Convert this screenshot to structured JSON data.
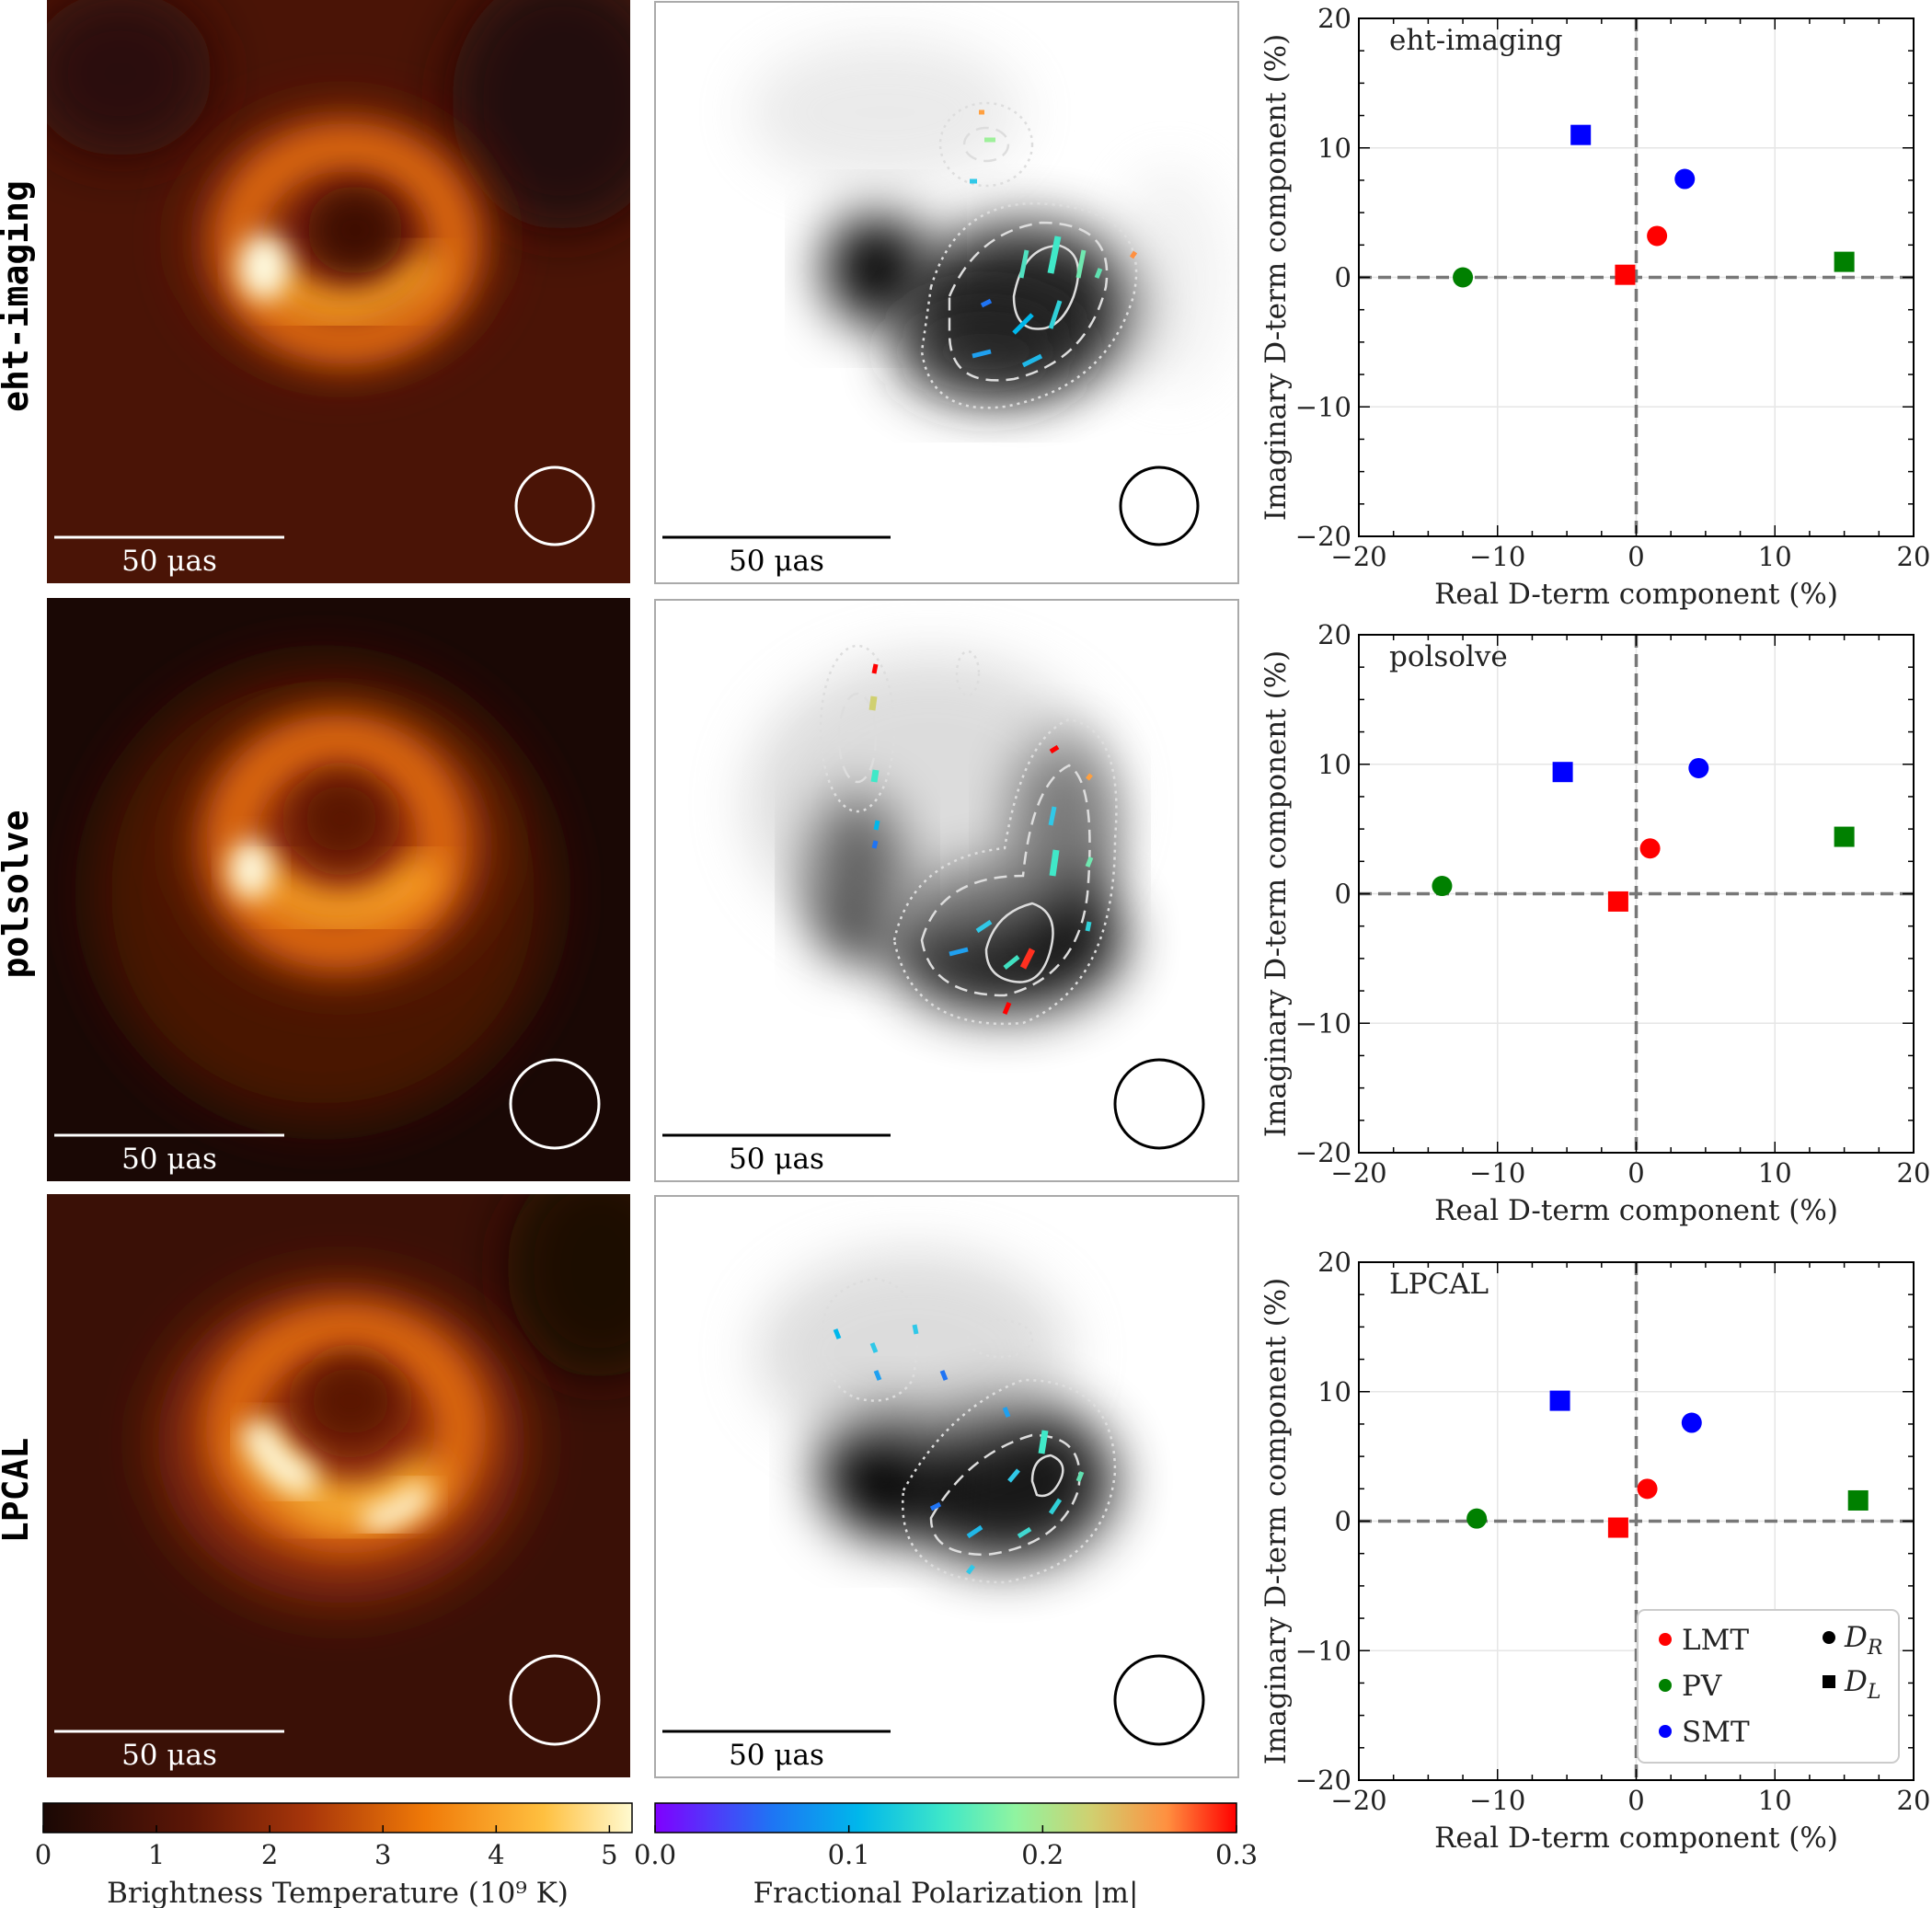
{
  "rows": [
    {
      "label": "eht-imaging",
      "panel_label": "eht-imaging"
    },
    {
      "label": "polsolve",
      "panel_label": "polsolve"
    },
    {
      "label": "LPCAL",
      "panel_label": "LPCAL"
    }
  ],
  "scale_bar": {
    "label": "50 μas"
  },
  "colorbars": {
    "brightness": {
      "label": "Brightness Temperature (10⁹ K)",
      "ticks": [
        "0",
        "1",
        "2",
        "3",
        "4",
        "5"
      ],
      "range": [
        0,
        5.2
      ]
    },
    "fracpol": {
      "label": "Fractional Polarization |m|",
      "ticks": [
        "0.0",
        "0.1",
        "0.2",
        "0.3"
      ],
      "range": [
        0,
        0.3
      ]
    }
  },
  "colors": {
    "LMT": "#ff0000",
    "PV": "#008000",
    "SMT": "#0000ff"
  },
  "legend": {
    "stations": [
      "LMT",
      "PV",
      "SMT"
    ],
    "markers": [
      {
        "label": "D",
        "sub": "R",
        "shape": "circle"
      },
      {
        "label": "D",
        "sub": "L",
        "shape": "square"
      }
    ]
  },
  "chart_data": [
    {
      "type": "scatter",
      "title": "eht-imaging",
      "xlabel": "Real D-term component (%)",
      "ylabel": "Imaginary D-term component (%)",
      "xlim": [
        -20,
        20
      ],
      "ylim": [
        -20,
        20
      ],
      "grid": true,
      "xticks": [
        "−20",
        "−10",
        "0",
        "10",
        "20"
      ],
      "yticks": [
        "−20",
        "−10",
        "0",
        "10",
        "20"
      ],
      "points": [
        {
          "station": "LMT",
          "term": "DR",
          "x": 1.5,
          "y": 3.2
        },
        {
          "station": "LMT",
          "term": "DL",
          "x": -0.8,
          "y": 0.2
        },
        {
          "station": "PV",
          "term": "DR",
          "x": -12.5,
          "y": 0.0
        },
        {
          "station": "PV",
          "term": "DL",
          "x": 15.0,
          "y": 1.2
        },
        {
          "station": "SMT",
          "term": "DR",
          "x": 3.5,
          "y": 7.6
        },
        {
          "station": "SMT",
          "term": "DL",
          "x": -4.0,
          "y": 11.0
        }
      ]
    },
    {
      "type": "scatter",
      "title": "polsolve",
      "xlabel": "Real D-term component (%)",
      "ylabel": "Imaginary D-term component (%)",
      "xlim": [
        -20,
        20
      ],
      "ylim": [
        -20,
        20
      ],
      "grid": true,
      "xticks": [
        "−20",
        "−10",
        "0",
        "10",
        "20"
      ],
      "yticks": [
        "−20",
        "−10",
        "0",
        "10",
        "20"
      ],
      "points": [
        {
          "station": "LMT",
          "term": "DR",
          "x": 1.0,
          "y": 3.5
        },
        {
          "station": "LMT",
          "term": "DL",
          "x": -1.3,
          "y": -0.6
        },
        {
          "station": "PV",
          "term": "DR",
          "x": -14.0,
          "y": 0.6
        },
        {
          "station": "PV",
          "term": "DL",
          "x": 15.0,
          "y": 4.4
        },
        {
          "station": "SMT",
          "term": "DR",
          "x": 4.5,
          "y": 9.7
        },
        {
          "station": "SMT",
          "term": "DL",
          "x": -5.3,
          "y": 9.4
        }
      ]
    },
    {
      "type": "scatter",
      "title": "LPCAL",
      "xlabel": "Real D-term component (%)",
      "ylabel": "Imaginary D-term component (%)",
      "xlim": [
        -20,
        20
      ],
      "ylim": [
        -20,
        20
      ],
      "grid": true,
      "xticks": [
        "−20",
        "−10",
        "0",
        "10",
        "20"
      ],
      "yticks": [
        "−20",
        "−10",
        "0",
        "10",
        "20"
      ],
      "legend_position": "lower-right",
      "points": [
        {
          "station": "LMT",
          "term": "DR",
          "x": 0.8,
          "y": 2.5
        },
        {
          "station": "LMT",
          "term": "DL",
          "x": -1.3,
          "y": -0.5
        },
        {
          "station": "PV",
          "term": "DR",
          "x": -11.5,
          "y": 0.2
        },
        {
          "station": "PV",
          "term": "DL",
          "x": 16.0,
          "y": 1.6
        },
        {
          "station": "SMT",
          "term": "DR",
          "x": 4.0,
          "y": 7.6
        },
        {
          "station": "SMT",
          "term": "DL",
          "x": -5.5,
          "y": 9.3
        }
      ]
    }
  ]
}
